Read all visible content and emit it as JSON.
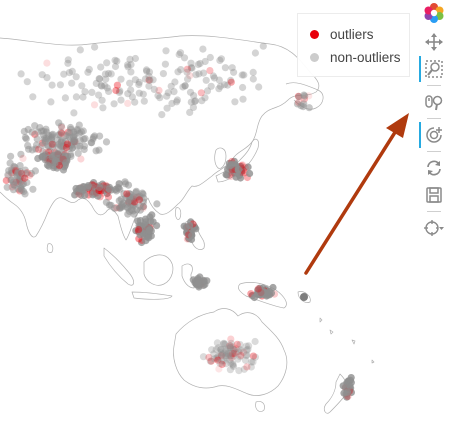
{
  "legend": {
    "items": [
      {
        "label": "outliers",
        "color": "#e8000b"
      },
      {
        "label": "non-outliers",
        "color": "#cccccc"
      }
    ]
  },
  "colors": {
    "outlier": "#e8000b",
    "non_outlier": "#8f8f8f",
    "land_outline": "#b0b0b0",
    "arrow": "#b03a0e",
    "toolbar_active": "#26aae1",
    "toolbar_icon": "#8a8a8a"
  },
  "toolbar": {
    "tools": [
      {
        "name": "bokeh-logo-icon",
        "active": false,
        "interactable": false
      },
      {
        "name": "pan-tool-icon",
        "active": false,
        "interactable": true
      },
      {
        "name": "box-zoom-tool-icon",
        "active": true,
        "interactable": true
      },
      {
        "name": "wheel-zoom-tool-icon",
        "active": false,
        "interactable": true
      },
      {
        "name": "tap-tool-icon",
        "active": true,
        "interactable": true
      },
      {
        "name": "reset-tool-icon",
        "active": false,
        "interactable": true
      },
      {
        "name": "save-tool-icon",
        "active": false,
        "interactable": true
      },
      {
        "name": "hover-tool-icon",
        "active": false,
        "interactable": true
      }
    ]
  }
}
